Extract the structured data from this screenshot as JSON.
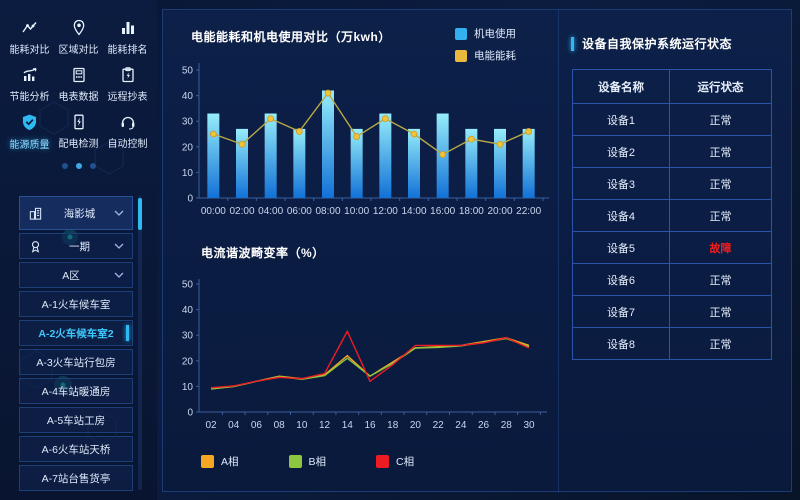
{
  "sidebar": {
    "modules": [
      {
        "label": "能耗对比",
        "icon": "trend-compare-icon"
      },
      {
        "label": "区域对比",
        "icon": "region-pin-icon"
      },
      {
        "label": "能耗排名",
        "icon": "ranking-bars-icon"
      },
      {
        "label": "节能分析",
        "icon": "analysis-chart-icon"
      },
      {
        "label": "电表数据",
        "icon": "meter-icon"
      },
      {
        "label": "远程抄表",
        "icon": "clipboard-icon"
      },
      {
        "label": "能源质量",
        "icon": "shield-icon",
        "active": true
      },
      {
        "label": "配电检测",
        "icon": "distribution-check-icon"
      },
      {
        "label": "自动控制",
        "icon": "auto-control-icon"
      }
    ],
    "pagination": {
      "dot_count": 3,
      "active_index": 1
    },
    "tree": {
      "items": [
        {
          "label": "海影城",
          "icon": "building-icon",
          "chevron": true,
          "root": true
        },
        {
          "label": "一期",
          "icon": "medal-icon",
          "chevron": true
        },
        {
          "label": "A区",
          "chevron": true
        },
        {
          "label": "A-1火车候车室"
        },
        {
          "label": "A-2火车候车室2",
          "selected": true
        },
        {
          "label": "A-3火车站行包房"
        },
        {
          "label": "A-4车站暖通房"
        },
        {
          "label": "A-5车站工房"
        },
        {
          "label": "A-6火车站天桥"
        },
        {
          "label": "A-7站台售货亭"
        }
      ]
    }
  },
  "chart_data": [
    {
      "type": "bar",
      "title": "电能能耗和机电使用对比（万kwh）",
      "categories": [
        "00:00",
        "02:00",
        "04:00",
        "06:00",
        "08:00",
        "10:00",
        "12:00",
        "14:00",
        "16:00",
        "18:00",
        "20:00",
        "22:00"
      ],
      "series": [
        {
          "name": "机电使用",
          "type": "bar",
          "legend_color": "#35B0EE",
          "color_top": "#96EDFA",
          "color_bottom": "#1271D6",
          "values": [
            33,
            27,
            33,
            27,
            42,
            27,
            33,
            27,
            33,
            27,
            27,
            27
          ]
        },
        {
          "name": "电能能耗",
          "type": "line",
          "legend_color": "#E8B93C",
          "color": "#B9A945",
          "point_color": "#F1C437",
          "values": [
            25,
            21,
            31,
            26,
            41,
            24,
            31,
            25,
            17,
            23,
            21,
            26
          ]
        }
      ],
      "ylim": [
        0,
        50
      ],
      "yticks": [
        0,
        10,
        20,
        30,
        40,
        50
      ],
      "xlabel": "",
      "ylabel": "",
      "legend_position": "top-right",
      "grid": false
    },
    {
      "type": "line",
      "title": "电流谐波畸变率（%）",
      "x": [
        "02",
        "04",
        "06",
        "08",
        "10",
        "12",
        "14",
        "16",
        "18",
        "20",
        "22",
        "24",
        "26",
        "28",
        "30"
      ],
      "series": [
        {
          "name": "A相",
          "color": "#F5A623",
          "values": [
            9,
            10,
            12,
            14,
            13,
            14.5,
            22,
            14,
            19.5,
            25,
            25.5,
            26,
            27.5,
            29,
            26
          ]
        },
        {
          "name": "B相",
          "color": "#8DC63F",
          "values": [
            9,
            10,
            12,
            13.8,
            12.8,
            14.2,
            21,
            14,
            19,
            25,
            25.2,
            25.8,
            27.2,
            28.7,
            25.5
          ]
        },
        {
          "name": "C相",
          "color": "#ED1C24",
          "values": [
            9.5,
            10.2,
            12,
            13.5,
            13,
            15,
            31.5,
            12,
            18.5,
            26,
            26,
            26,
            27,
            29,
            25
          ]
        }
      ],
      "ylim": [
        0,
        50
      ],
      "yticks": [
        0,
        10,
        20,
        30,
        40,
        50
      ],
      "xlabel": "",
      "ylabel": "",
      "legend_position": "bottom",
      "grid": false
    }
  ],
  "device_panel": {
    "title": "设备自我保护系统运行状态",
    "columns": [
      "设备名称",
      "运行状态"
    ],
    "rows": [
      {
        "name": "设备1",
        "status": "正常",
        "fault": false
      },
      {
        "name": "设备2",
        "status": "正常",
        "fault": false
      },
      {
        "name": "设备3",
        "status": "正常",
        "fault": false
      },
      {
        "name": "设备4",
        "status": "正常",
        "fault": false
      },
      {
        "name": "设备5",
        "status": "故障",
        "fault": true
      },
      {
        "name": "设备6",
        "status": "正常",
        "fault": false
      },
      {
        "name": "设备7",
        "status": "正常",
        "fault": false
      },
      {
        "name": "设备8",
        "status": "正常",
        "fault": false
      }
    ],
    "status_colors": {
      "normal": "#E6EEF9",
      "fault": "#F21C1C"
    }
  },
  "accent_colors": {
    "highlight_cyan": "#2FB9F2",
    "panel_border": "#1B3C74",
    "table_border": "#2A55A8"
  }
}
